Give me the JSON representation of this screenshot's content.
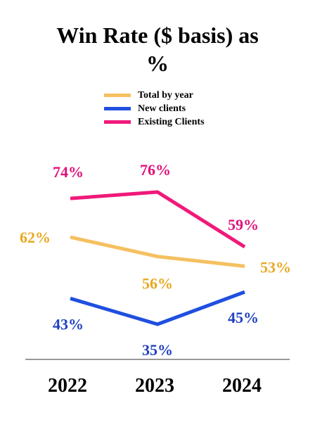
{
  "chart_data": {
    "type": "line",
    "title_lines": [
      "Win Rate ($ basis) as",
      "%"
    ],
    "categories": [
      "2022",
      "2023",
      "2024"
    ],
    "series": [
      {
        "name": "Total by year",
        "color": "#F5C060",
        "values": [
          62,
          56,
          53
        ],
        "labels": [
          "62%",
          "56%",
          "53%"
        ]
      },
      {
        "name": "New clients",
        "color": "#1F4FE0",
        "values": [
          43,
          35,
          45
        ],
        "labels": [
          "43%",
          "35%",
          "45%"
        ]
      },
      {
        "name": "Existing Clients",
        "color": "#F0197A",
        "values": [
          74,
          76,
          59
        ],
        "labels": [
          "74%",
          "76%",
          "59%"
        ]
      }
    ],
    "label_colors": [
      "#E8A820",
      "#2040C0",
      "#E0107A"
    ],
    "xlabel": "",
    "ylabel": "",
    "ylim": [
      25,
      85
    ],
    "grid": false,
    "legend_position": "top-center"
  }
}
